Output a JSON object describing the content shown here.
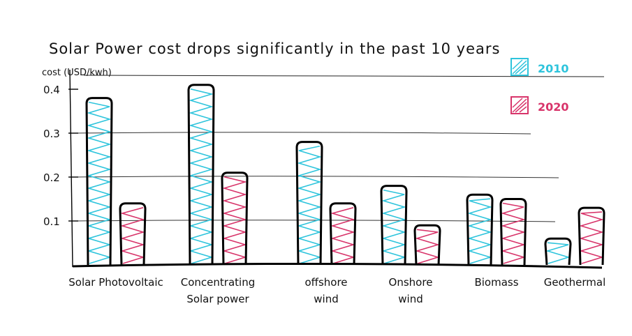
{
  "chart_data": {
    "type": "bar",
    "title": "Solar Power cost drops significantly in the past 10 years",
    "ylabel": "cost (USD/kwh)",
    "xlabel": "",
    "ylim": [
      0,
      0.4
    ],
    "grid": true,
    "legend_position": "top-right",
    "categories": [
      [
        "Solar Photovoltaic"
      ],
      [
        "Concentrating",
        "Solar power"
      ],
      [
        "offshore",
        "wind"
      ],
      [
        "Onshore",
        "wind"
      ],
      [
        "Biomass"
      ],
      [
        "Geothermal"
      ]
    ],
    "yticks": [
      "0.4",
      "0.3",
      "0.2",
      "0.1"
    ],
    "series": [
      {
        "name": "2010",
        "color": "#2ec4dc",
        "values": [
          0.38,
          0.41,
          0.28,
          0.18,
          0.16,
          0.06
        ]
      },
      {
        "name": "2020",
        "color": "#d8346a",
        "values": [
          0.14,
          0.21,
          0.14,
          0.09,
          0.15,
          0.13
        ]
      }
    ]
  }
}
